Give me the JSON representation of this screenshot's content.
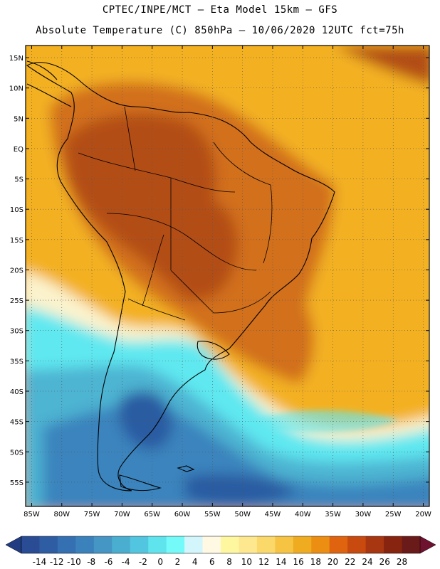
{
  "title_line1": "CPTEC/INPE/MCT –  Eta Model 15km – GFS",
  "title_line2": "Absolute Temperature (C) 850hPa – 10/06/2020 12UTC fct=75h",
  "map": {
    "lon_range": [
      -86,
      -19
    ],
    "lat_range": [
      -59,
      17
    ],
    "lat_ticks": [
      {
        "value": 15,
        "label": "15N"
      },
      {
        "value": 10,
        "label": "10N"
      },
      {
        "value": 5,
        "label": "5N"
      },
      {
        "value": 0,
        "label": "EQ"
      },
      {
        "value": -5,
        "label": "5S"
      },
      {
        "value": -10,
        "label": "10S"
      },
      {
        "value": -15,
        "label": "15S"
      },
      {
        "value": -20,
        "label": "20S"
      },
      {
        "value": -25,
        "label": "25S"
      },
      {
        "value": -30,
        "label": "30S"
      },
      {
        "value": -35,
        "label": "35S"
      },
      {
        "value": -40,
        "label": "40S"
      },
      {
        "value": -45,
        "label": "45S"
      },
      {
        "value": -50,
        "label": "50S"
      },
      {
        "value": -55,
        "label": "55S"
      }
    ],
    "lon_ticks": [
      {
        "value": -85,
        "label": "85W"
      },
      {
        "value": -80,
        "label": "80W"
      },
      {
        "value": -75,
        "label": "75W"
      },
      {
        "value": -70,
        "label": "70W"
      },
      {
        "value": -65,
        "label": "65W"
      },
      {
        "value": -60,
        "label": "60W"
      },
      {
        "value": -55,
        "label": "55W"
      },
      {
        "value": -50,
        "label": "50W"
      },
      {
        "value": -45,
        "label": "45W"
      },
      {
        "value": -40,
        "label": "40W"
      },
      {
        "value": -35,
        "label": "35W"
      },
      {
        "value": -30,
        "label": "30W"
      },
      {
        "value": -25,
        "label": "25W"
      },
      {
        "value": -20,
        "label": "20W"
      }
    ],
    "gridlines": "dotted"
  },
  "colorbar": {
    "labels": [
      "-14",
      "-12",
      "-10",
      "-8",
      "-6",
      "-4",
      "-2",
      "0",
      "2",
      "4",
      "6",
      "8",
      "10",
      "12",
      "14",
      "16",
      "18",
      "20",
      "22",
      "24",
      "26",
      "28"
    ],
    "colors": [
      "#2a4c94",
      "#2f5da4",
      "#3470b2",
      "#3b82bd",
      "#4595c5",
      "#4aaed0",
      "#52c6e0",
      "#5fe3ec",
      "#74fbf9",
      "#d2f6fb",
      "#fff8e2",
      "#fff7a0",
      "#fde890",
      "#fbd86a",
      "#f6c442",
      "#f0ac20",
      "#ec8e12",
      "#e06410",
      "#c84a0e",
      "#a83610",
      "#862410",
      "#6a1a18"
    ],
    "under_color": "#223c84",
    "over_color": "#6e1230"
  },
  "field_colors": {
    "ocean_north": "#f3b124",
    "hot_core": "#b34d12",
    "warm": "#d2701a",
    "pale_band": "#fbf3cd",
    "cyan": "#5fe8f0",
    "teal": "#4eb4d2",
    "blue": "#3a84bd",
    "deep_blue": "#2a5ca2"
  }
}
